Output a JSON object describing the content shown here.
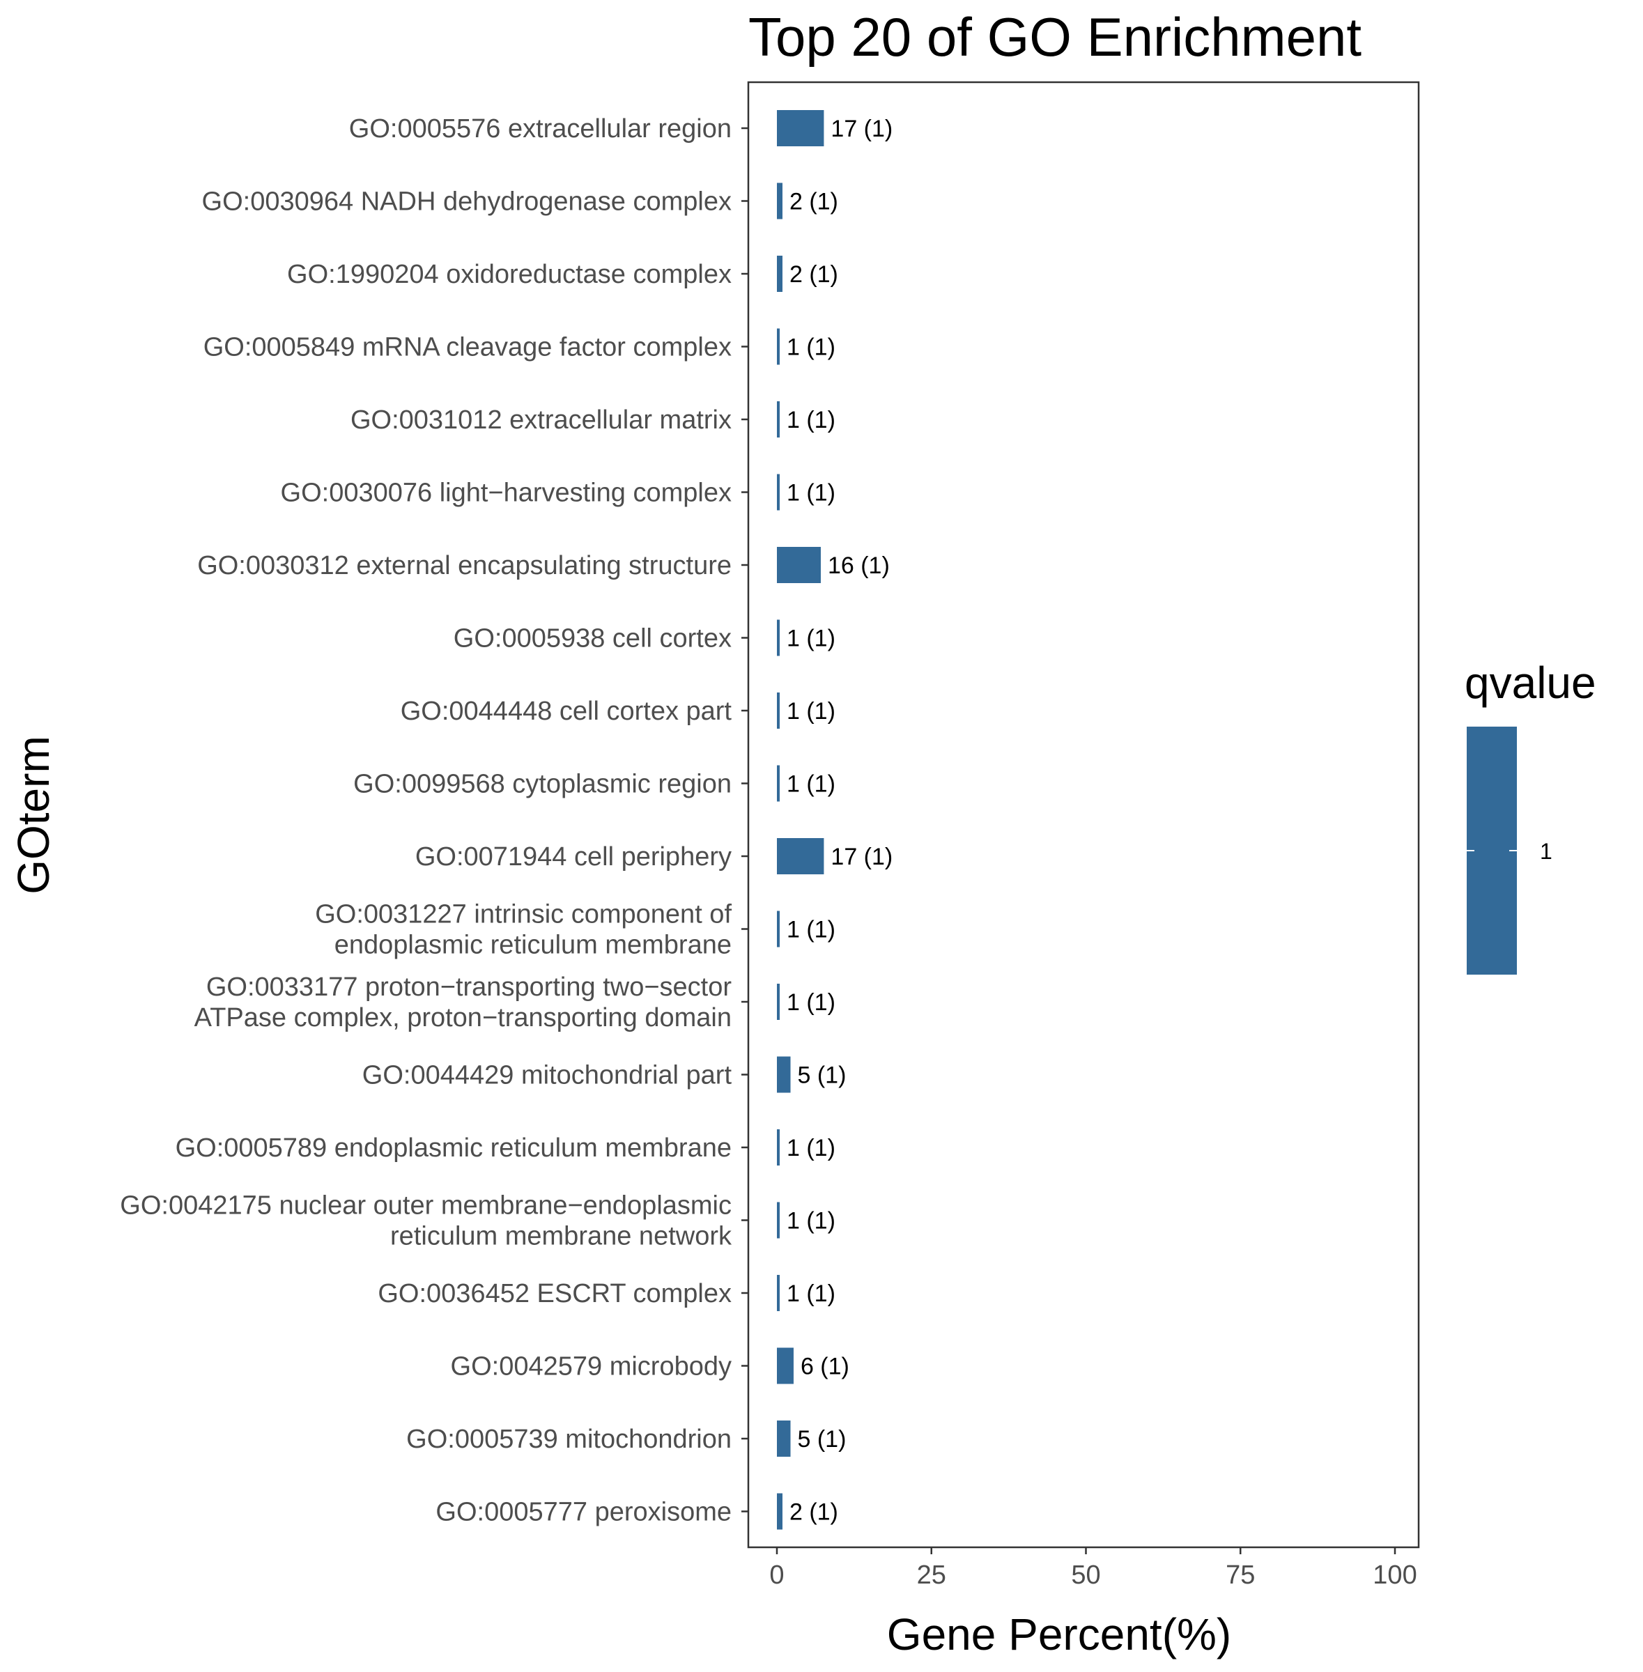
{
  "chart_data": {
    "type": "bar",
    "orientation": "horizontal",
    "title": "Top 20 of GO Enrichment",
    "xlabel": "Gene Percent(%)",
    "ylabel": "GOterm",
    "xlim": [
      0,
      100
    ],
    "xticks": [
      0,
      25,
      50,
      75,
      100
    ],
    "grid": false,
    "bar_color": "#336a98",
    "categories": [
      [
        "GO:0005576 extracellular region"
      ],
      [
        "GO:0030964 NADH dehydrogenase complex"
      ],
      [
        "GO:1990204 oxidoreductase complex"
      ],
      [
        "GO:0005849 mRNA cleavage factor complex"
      ],
      [
        "GO:0031012 extracellular matrix"
      ],
      [
        "GO:0030076 light−harvesting complex"
      ],
      [
        "GO:0030312 external encapsulating structure"
      ],
      [
        "GO:0005938 cell cortex"
      ],
      [
        "GO:0044448 cell cortex part"
      ],
      [
        "GO:0099568 cytoplasmic region"
      ],
      [
        "GO:0071944 cell periphery"
      ],
      [
        "GO:0031227 intrinsic component of",
        "endoplasmic reticulum membrane"
      ],
      [
        "GO:0033177 proton−transporting two−sector",
        "ATPase complex, proton−transporting domain"
      ],
      [
        "GO:0044429 mitochondrial part"
      ],
      [
        "GO:0005789 endoplasmic reticulum membrane"
      ],
      [
        "GO:0042175 nuclear outer membrane−endoplasmic",
        "reticulum membrane network"
      ],
      [
        "GO:0036452 ESCRT complex"
      ],
      [
        "GO:0042579 microbody"
      ],
      [
        "GO:0005739 mitochondrion"
      ],
      [
        "GO:0005777 peroxisome"
      ]
    ],
    "values": [
      7.6,
      0.9,
      0.9,
      0.45,
      0.45,
      0.45,
      7.1,
      0.45,
      0.45,
      0.45,
      7.6,
      0.45,
      0.45,
      2.2,
      0.45,
      0.45,
      0.45,
      2.7,
      2.2,
      0.9
    ],
    "bar_labels": [
      "17 (1)",
      "2 (1)",
      "2 (1)",
      "1 (1)",
      "1 (1)",
      "1 (1)",
      "16 (1)",
      "1 (1)",
      "1 (1)",
      "1 (1)",
      "17 (1)",
      "1 (1)",
      "1 (1)",
      "5 (1)",
      "1 (1)",
      "1 (1)",
      "1 (1)",
      "6 (1)",
      "5 (1)",
      "2 (1)"
    ],
    "legend": {
      "title": "qvalue",
      "labels": [
        "1"
      ],
      "position": "right"
    }
  }
}
